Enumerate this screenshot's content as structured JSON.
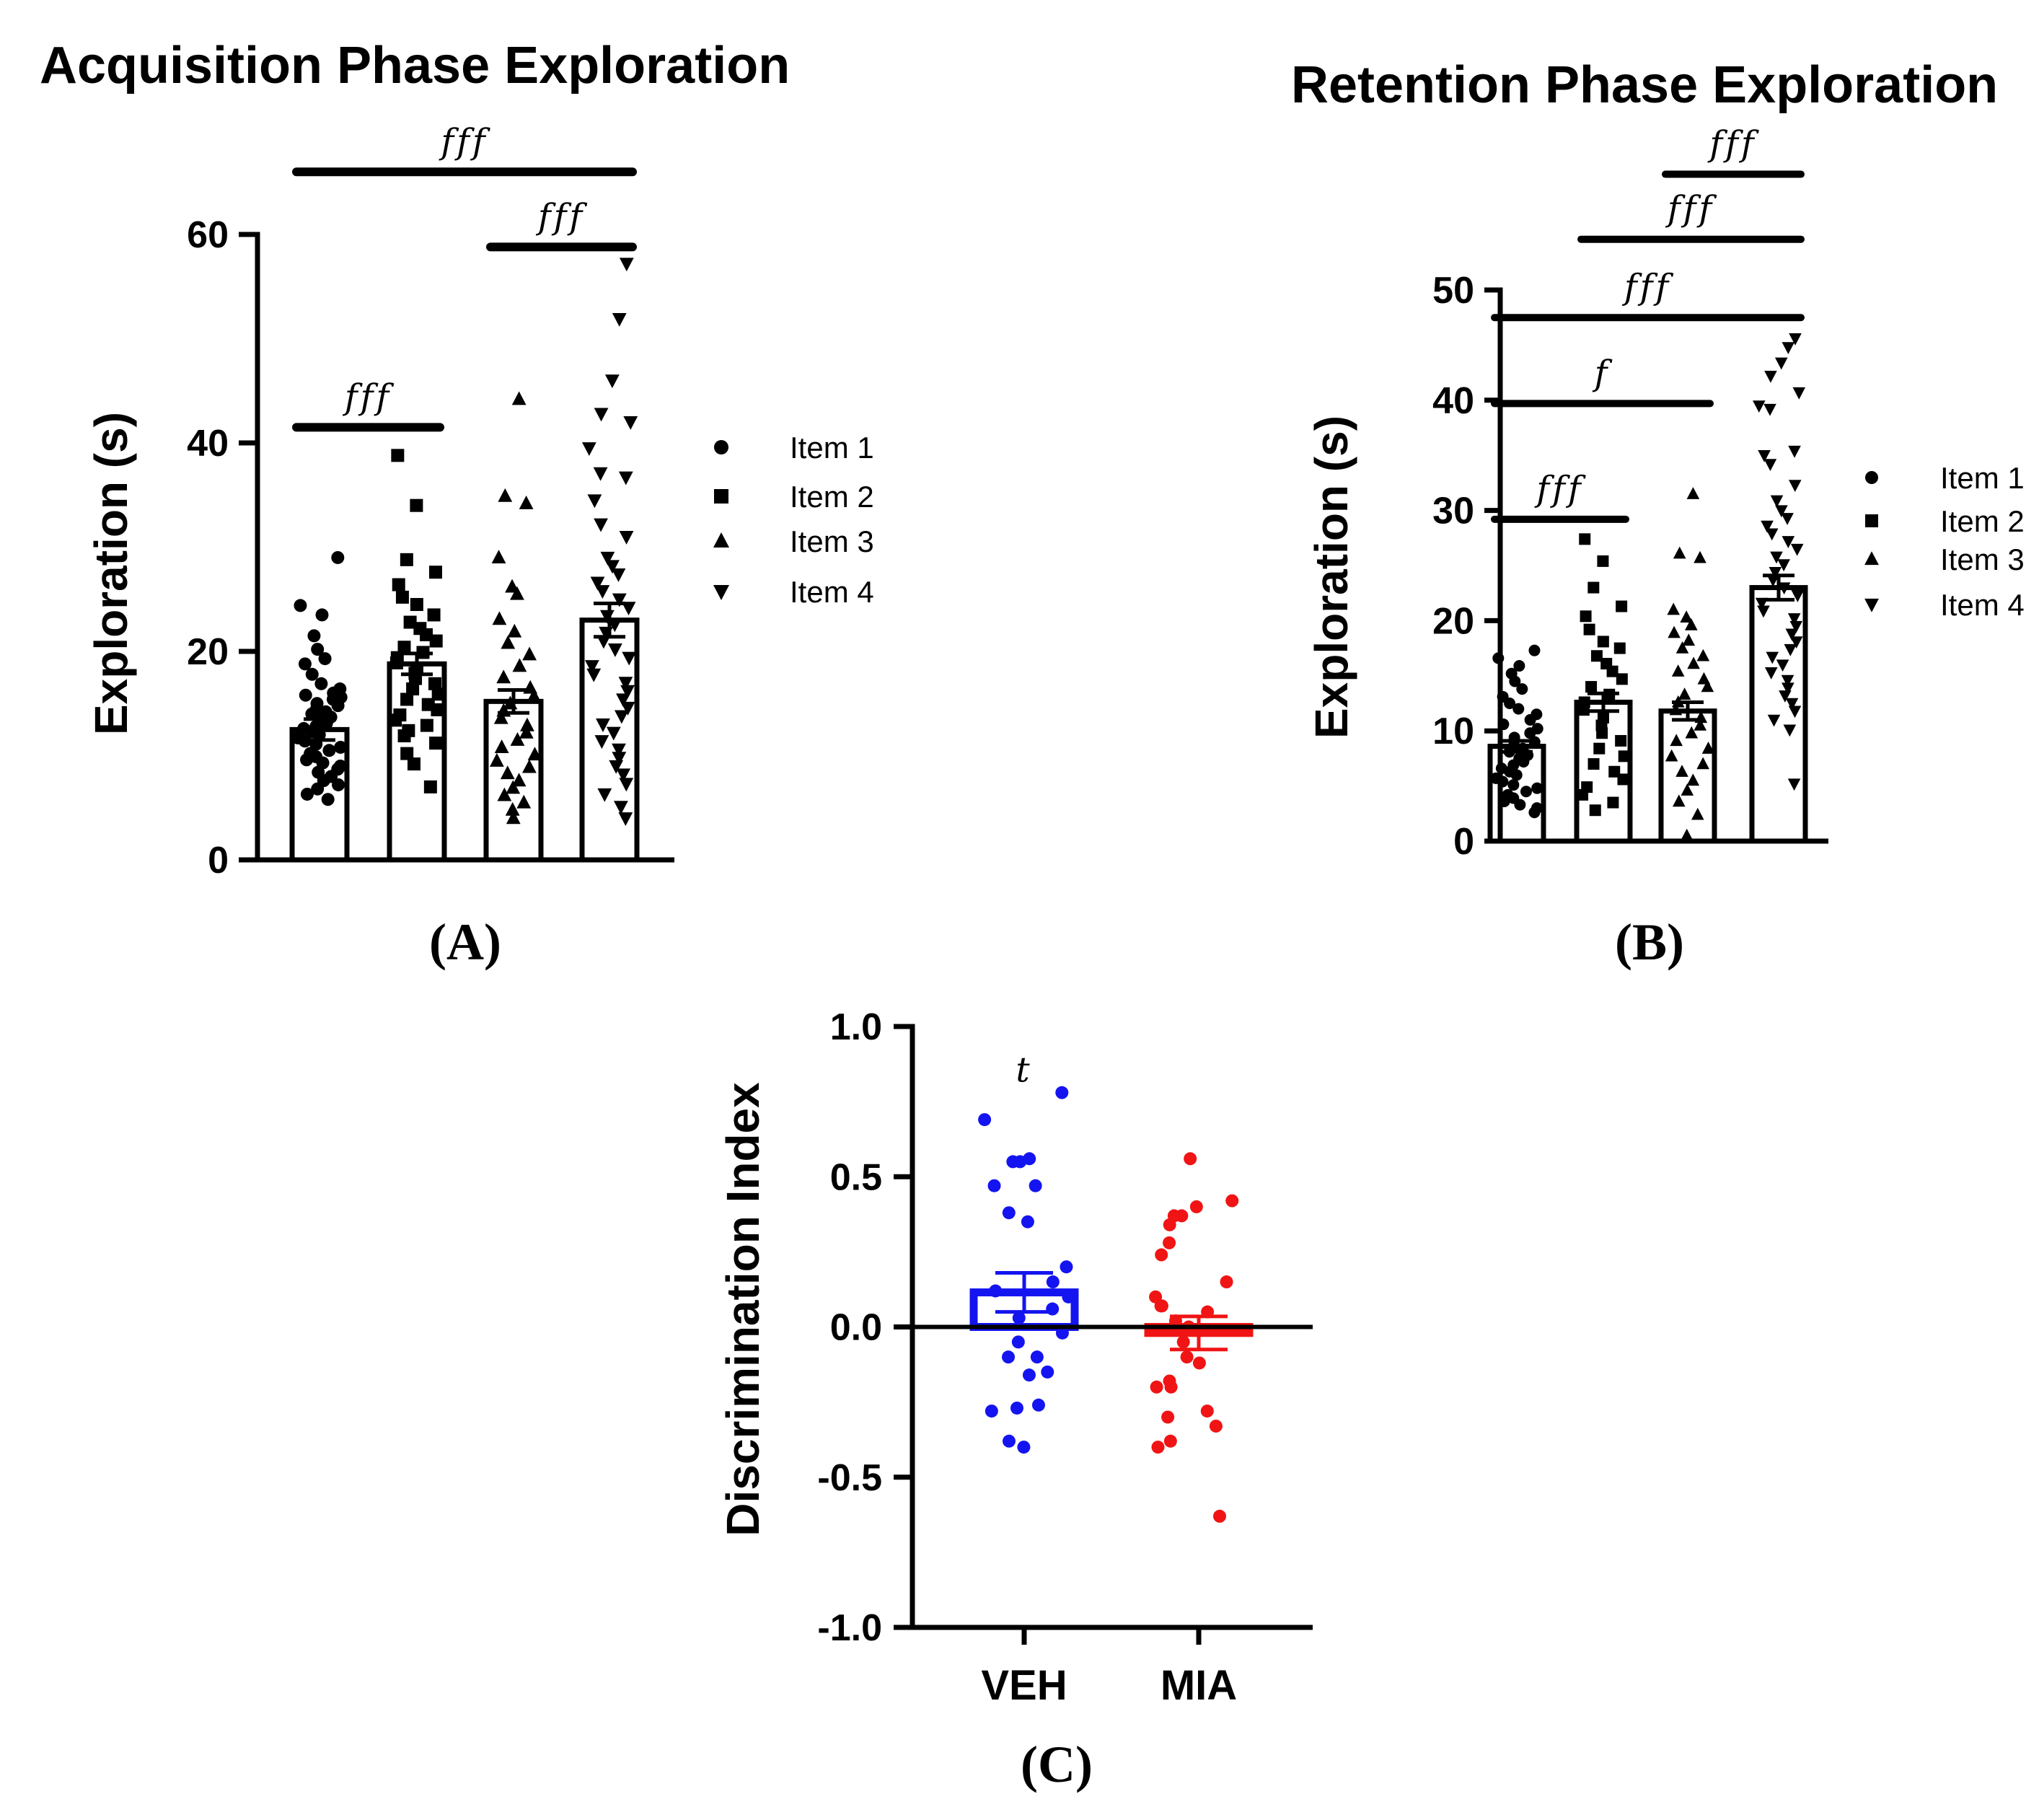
{
  "figure": {
    "panel_labels": [
      "(A)",
      "(B)",
      "(C)"
    ]
  },
  "chart_data": [
    {
      "id": "A",
      "type": "bar",
      "title": "Acquisition Phase Exploration",
      "ylabel": "Exploration (s)",
      "xlabel": "",
      "ylim": [
        0,
        60
      ],
      "yticks": [
        "0",
        "20",
        "40",
        "60"
      ],
      "categories": [
        "Item 1",
        "Item 2",
        "Item 3",
        "Item 4"
      ],
      "markers": [
        "circle",
        "square",
        "triangle-up",
        "triangle-down"
      ],
      "legend": [
        "Item 1",
        "Item 2",
        "Item 3",
        "Item 4"
      ],
      "values": [
        12.5,
        18.8,
        15.2,
        23.0
      ],
      "sem": [
        1.0,
        1.0,
        1.1,
        1.6
      ],
      "points": [
        [
          29,
          24.4,
          23.5,
          21.5,
          20.2,
          19.3,
          18.8,
          17.8,
          16.9,
          16.4,
          16,
          15.8,
          15.6,
          15.4,
          15,
          14.8,
          14.5,
          14.2,
          14,
          13.7,
          13.4,
          13.1,
          12.8,
          12.6,
          12.3,
          12,
          11.7,
          11.4,
          11.1,
          10.8,
          10.5,
          10.2,
          9.9,
          9.6,
          9.3,
          9,
          8.7,
          8.4,
          8,
          7.6,
          7.2,
          6.8,
          6.3,
          5.8
        ],
        [
          38.8,
          34,
          28.8,
          27.6,
          26.4,
          25.2,
          24.5,
          23.5,
          22.8,
          22.2,
          21.6,
          21,
          20.4,
          19.9,
          19.4,
          18.9,
          18.4,
          17.9,
          17.4,
          16.9,
          16.4,
          15.9,
          15.4,
          14.9,
          14.4,
          13.9,
          13.4,
          12.9,
          12.4,
          11.9,
          11.2,
          10.2,
          9.2,
          7
        ],
        [
          44.2,
          34.9,
          34.2,
          29,
          26.2,
          25.5,
          23.1,
          21.9,
          20.8,
          19.7,
          18.6,
          17.5,
          16.5,
          15.7,
          15,
          14.3,
          13.6,
          12.9,
          12.2,
          11.5,
          10.8,
          10.1,
          9.5,
          8.9,
          8.3,
          7.6,
          6.9,
          6.2,
          5.5,
          4.8,
          4
        ],
        [
          57.2,
          51.9,
          46,
          42.8,
          42,
          39.5,
          37.1,
          36.7,
          34.5,
          32.2,
          31,
          29,
          28.2,
          27.4,
          26.6,
          25.8,
          25,
          24.2,
          23.4,
          22.6,
          21.8,
          21,
          20.2,
          19.4,
          18.6,
          17.8,
          17,
          16.2,
          15.4,
          14.6,
          13.8,
          13,
          12.2,
          11.4,
          10.6,
          9.8,
          9,
          8.2,
          7.3,
          6.3,
          5.1,
          4
        ]
      ],
      "significance": [
        {
          "from": 0,
          "to": 1,
          "y": 41.5,
          "label": "fff"
        },
        {
          "from": 2,
          "to": 3,
          "y": 58.8,
          "label": "fff"
        },
        {
          "from": 0,
          "to": 3,
          "y": 66,
          "label": "fff"
        }
      ]
    },
    {
      "id": "B",
      "type": "bar",
      "title": "Retention Phase Exploration",
      "ylabel": "Exploration (s)",
      "xlabel": "",
      "ylim": [
        0,
        50
      ],
      "yticks": [
        "0",
        "10",
        "20",
        "30",
        "40",
        "50"
      ],
      "categories": [
        "Item 1",
        "Item 2",
        "Item 3",
        "Item 4"
      ],
      "markers": [
        "circle",
        "square",
        "triangle-up",
        "triangle-down"
      ],
      "legend": [
        "Item 1",
        "Item 2",
        "Item 3",
        "Item 4"
      ],
      "values": [
        8.6,
        12.6,
        11.8,
        23.0
      ],
      "sem": [
        0.5,
        0.8,
        0.8,
        1.1
      ],
      "points": [
        [
          17.3,
          16.6,
          15.9,
          15.2,
          14.5,
          13.8,
          13.1,
          12.5,
          12,
          11.5,
          11,
          10.6,
          10.2,
          9.8,
          9.4,
          9,
          8.7,
          8.4,
          8.1,
          7.8,
          7.5,
          7.2,
          6.9,
          6.6,
          6.3,
          6,
          5.7,
          5.4,
          5.1,
          4.8,
          4.5,
          4.2,
          3.9,
          3.6,
          3.3,
          3,
          2.6
        ],
        [
          27.4,
          25.4,
          23,
          21.3,
          20.4,
          19.2,
          18.1,
          17.5,
          16.8,
          16.1,
          15.4,
          14.7,
          14,
          13.3,
          12.6,
          11.9,
          11.2,
          10.5,
          9.8,
          9.1,
          8.4,
          7.7,
          7,
          6.3,
          5.6,
          4.9,
          4.2,
          3.5,
          2.8
        ],
        [
          31.5,
          26.1,
          25.7,
          21,
          20.3,
          19.6,
          18.9,
          18.2,
          17.5,
          16.8,
          16.1,
          15.4,
          14.7,
          14,
          13.3,
          12.6,
          11.9,
          11.2,
          10.5,
          9.8,
          9.1,
          8.4,
          7.7,
          7,
          6.3,
          5.5,
          4.6,
          3.6,
          2.4,
          0.5
        ],
        [
          45.6,
          44.8,
          43.4,
          42.2,
          40.7,
          39.5,
          39.2,
          35.4,
          35,
          34.2,
          32.3,
          30.9,
          30,
          29.3,
          28.6,
          27.9,
          27.2,
          26.5,
          25.8,
          25.1,
          24.4,
          23.7,
          23,
          22.3,
          21.6,
          20.9,
          20.2,
          19.5,
          18.8,
          18.1,
          17.4,
          16.7,
          16,
          15.3,
          14.6,
          13.9,
          13.2,
          12.5,
          11.8,
          11,
          10.1,
          5.2
        ]
      ],
      "significance": [
        {
          "from": 0,
          "to": 1,
          "y": 29.2,
          "label": "fff"
        },
        {
          "from": 0,
          "to": 2,
          "y": 39.7,
          "label": "f"
        },
        {
          "from": 0,
          "to": 3,
          "y": 47.5,
          "label": "fff"
        },
        {
          "from": 1,
          "to": 3,
          "y": 54.6,
          "label": "fff"
        },
        {
          "from": 2,
          "to": 3,
          "y": 60.5,
          "label": "fff"
        }
      ]
    },
    {
      "id": "C",
      "type": "bar",
      "title": "",
      "ylabel": "Discrimination Index",
      "xlabel": "",
      "ylim": [
        -1.0,
        1.0
      ],
      "yticks": [
        "-1.0",
        "-0.5",
        "0.0",
        "0.5",
        "1.0"
      ],
      "categories": [
        "VEH",
        "MIA"
      ],
      "colors": [
        "#1414f0",
        "#f01414"
      ],
      "values": [
        0.115,
        -0.02
      ],
      "sem": [
        0.065,
        0.055
      ],
      "annotation": {
        "category": 0,
        "y": 0.86,
        "label": "t"
      },
      "points": [
        [
          0.78,
          0.69,
          0.56,
          0.55,
          0.55,
          0.47,
          0.47,
          0.38,
          0.35,
          0.2,
          0.15,
          0.12,
          0.1,
          0.06,
          0.03,
          -0.02,
          -0.05,
          -0.1,
          -0.1,
          -0.15,
          -0.16,
          -0.26,
          -0.27,
          -0.28,
          -0.38,
          -0.4
        ],
        [
          0.56,
          0.42,
          0.4,
          0.37,
          0.37,
          0.34,
          0.28,
          0.24,
          0.15,
          0.1,
          0.07,
          0.07,
          0.05,
          0.02,
          0,
          -0.05,
          -0.1,
          -0.12,
          -0.18,
          -0.2,
          -0.2,
          -0.28,
          -0.3,
          -0.33,
          -0.38,
          -0.4,
          -0.63
        ]
      ]
    }
  ]
}
